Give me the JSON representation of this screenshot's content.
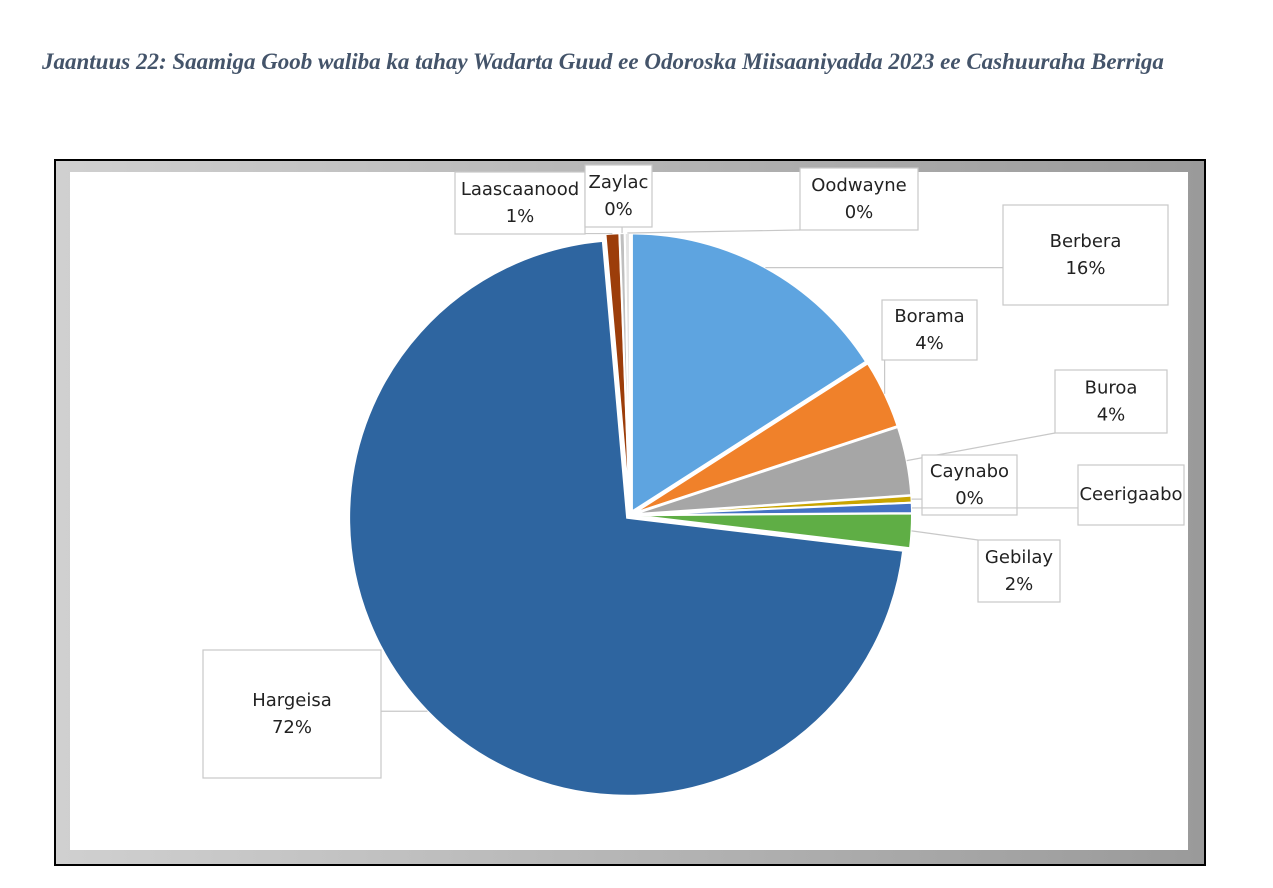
{
  "caption": "Jaantuus 22: Saamiga Goob waliba ka tahay Wadarta Guud ee Odoroska Miisaaniyadda 2023 ee Cashuuraha Berriga",
  "chart_data": {
    "type": "pie",
    "categories": [
      "Berbera",
      "Borama",
      "Buroa",
      "Caynabo",
      "Ceerigaabo",
      "Gebilay",
      "Hargeisa",
      "Laascaanood",
      "Zaylac",
      "Oodwayne"
    ],
    "values": [
      16,
      4,
      4,
      0.4,
      0.6,
      2,
      72,
      0.8,
      0.3,
      0.3
    ],
    "value_labels": [
      "16%",
      "4%",
      "4%",
      "0%",
      null,
      "2%",
      "72%",
      "1%",
      "0%",
      "0%"
    ],
    "colors": [
      "#5ea4e0",
      "#f0812a",
      "#a6a6a6",
      "#c9a400",
      "#4472c4",
      "#5fae45",
      "#2e65a0",
      "#9c3d0a",
      "#bfbfbf",
      "#e4e4e4"
    ]
  }
}
